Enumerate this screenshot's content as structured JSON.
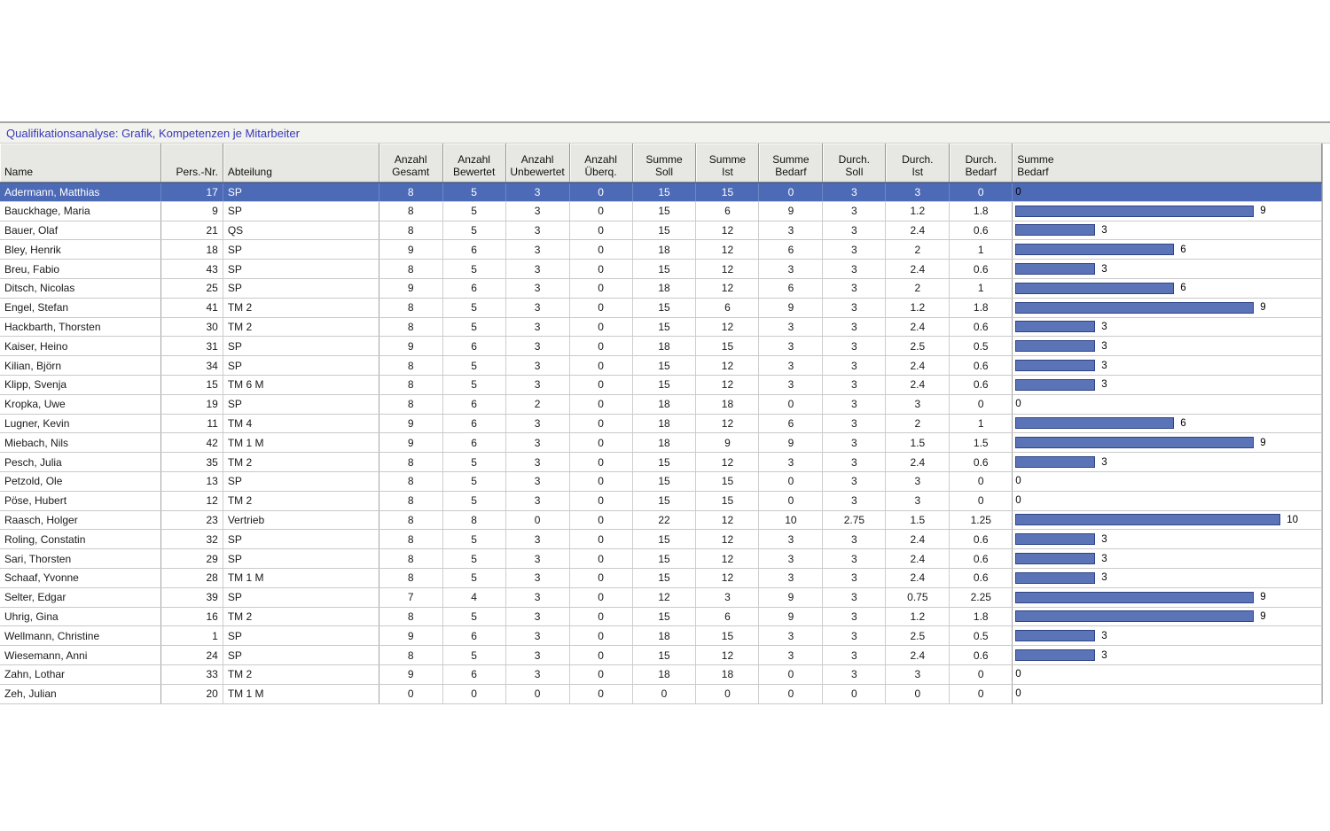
{
  "title": "Qualifikationsanalyse: Grafik, Kompetenzen je Mitarbeiter",
  "colors": {
    "title_text": "#3838b6",
    "selected_row": "#4c6ab6",
    "bar_fill": "#5b74b8",
    "bar_border": "#2f4385"
  },
  "table": {
    "columns": [
      {
        "key": "name",
        "label": "Name",
        "align": "left"
      },
      {
        "key": "pers_nr",
        "label": "Pers.-Nr.",
        "align": "right"
      },
      {
        "key": "abteilung",
        "label": "Abteilung",
        "align": "left"
      },
      {
        "key": "anzahl_gesamt",
        "label": "Anzahl\nGesamt",
        "align": "center"
      },
      {
        "key": "anzahl_bewertet",
        "label": "Anzahl\nBewertet",
        "align": "center"
      },
      {
        "key": "anzahl_unbewertet",
        "label": "Anzahl\nUnbewertet",
        "align": "center"
      },
      {
        "key": "anzahl_uberq",
        "label": "Anzahl\nÜberq.",
        "align": "center"
      },
      {
        "key": "summe_soll",
        "label": "Summe\nSoll",
        "align": "center"
      },
      {
        "key": "summe_ist",
        "label": "Summe\nIst",
        "align": "center"
      },
      {
        "key": "summe_bedarf",
        "label": "Summe\nBedarf",
        "align": "center"
      },
      {
        "key": "durch_soll",
        "label": "Durch.\nSoll",
        "align": "center"
      },
      {
        "key": "durch_ist",
        "label": "Durch.\nIst",
        "align": "center"
      },
      {
        "key": "durch_bedarf",
        "label": "Durch.\nBedarf",
        "align": "center"
      },
      {
        "key": "summe_bedarf_grafik",
        "label": "Summe\nBedarf",
        "align": "left"
      }
    ],
    "rows": [
      {
        "name": "Adermann, Matthias",
        "pers_nr": "17",
        "abteilung": "SP",
        "values": [
          "8",
          "5",
          "3",
          "0",
          "15",
          "15",
          "0",
          "3",
          "3",
          "0"
        ],
        "bar": "0",
        "selected": true
      },
      {
        "name": "Bauckhage, Maria",
        "pers_nr": "9",
        "abteilung": "SP",
        "values": [
          "8",
          "5",
          "3",
          "0",
          "15",
          "6",
          "9",
          "3",
          "1.2",
          "1.8"
        ],
        "bar": "9"
      },
      {
        "name": "Bauer, Olaf",
        "pers_nr": "21",
        "abteilung": "QS",
        "values": [
          "8",
          "5",
          "3",
          "0",
          "15",
          "12",
          "3",
          "3",
          "2.4",
          "0.6"
        ],
        "bar": "3"
      },
      {
        "name": "Bley, Henrik",
        "pers_nr": "18",
        "abteilung": "SP",
        "values": [
          "9",
          "6",
          "3",
          "0",
          "18",
          "12",
          "6",
          "3",
          "2",
          "1"
        ],
        "bar": "6"
      },
      {
        "name": "Breu, Fabio",
        "pers_nr": "43",
        "abteilung": "SP",
        "values": [
          "8",
          "5",
          "3",
          "0",
          "15",
          "12",
          "3",
          "3",
          "2.4",
          "0.6"
        ],
        "bar": "3"
      },
      {
        "name": "Ditsch, Nicolas",
        "pers_nr": "25",
        "abteilung": "SP",
        "values": [
          "9",
          "6",
          "3",
          "0",
          "18",
          "12",
          "6",
          "3",
          "2",
          "1"
        ],
        "bar": "6"
      },
      {
        "name": "Engel, Stefan",
        "pers_nr": "41",
        "abteilung": "TM 2",
        "values": [
          "8",
          "5",
          "3",
          "0",
          "15",
          "6",
          "9",
          "3",
          "1.2",
          "1.8"
        ],
        "bar": "9"
      },
      {
        "name": "Hackbarth, Thorsten",
        "pers_nr": "30",
        "abteilung": "TM 2",
        "values": [
          "8",
          "5",
          "3",
          "0",
          "15",
          "12",
          "3",
          "3",
          "2.4",
          "0.6"
        ],
        "bar": "3"
      },
      {
        "name": "Kaiser, Heino",
        "pers_nr": "31",
        "abteilung": "SP",
        "values": [
          "9",
          "6",
          "3",
          "0",
          "18",
          "15",
          "3",
          "3",
          "2.5",
          "0.5"
        ],
        "bar": "3"
      },
      {
        "name": "Kilian, Björn",
        "pers_nr": "34",
        "abteilung": "SP",
        "values": [
          "8",
          "5",
          "3",
          "0",
          "15",
          "12",
          "3",
          "3",
          "2.4",
          "0.6"
        ],
        "bar": "3"
      },
      {
        "name": "Klipp, Svenja",
        "pers_nr": "15",
        "abteilung": "TM 6 M",
        "values": [
          "8",
          "5",
          "3",
          "0",
          "15",
          "12",
          "3",
          "3",
          "2.4",
          "0.6"
        ],
        "bar": "3"
      },
      {
        "name": "Kropka, Uwe",
        "pers_nr": "19",
        "abteilung": "SP",
        "values": [
          "8",
          "6",
          "2",
          "0",
          "18",
          "18",
          "0",
          "3",
          "3",
          "0"
        ],
        "bar": "0"
      },
      {
        "name": "Lugner, Kevin",
        "pers_nr": "11",
        "abteilung": "TM 4",
        "values": [
          "9",
          "6",
          "3",
          "0",
          "18",
          "12",
          "6",
          "3",
          "2",
          "1"
        ],
        "bar": "6"
      },
      {
        "name": "Miebach, Nils",
        "pers_nr": "42",
        "abteilung": "TM 1 M",
        "values": [
          "9",
          "6",
          "3",
          "0",
          "18",
          "9",
          "9",
          "3",
          "1.5",
          "1.5"
        ],
        "bar": "9"
      },
      {
        "name": "Pesch, Julia",
        "pers_nr": "35",
        "abteilung": "TM 2",
        "values": [
          "8",
          "5",
          "3",
          "0",
          "15",
          "12",
          "3",
          "3",
          "2.4",
          "0.6"
        ],
        "bar": "3"
      },
      {
        "name": "Petzold, Ole",
        "pers_nr": "13",
        "abteilung": "SP",
        "values": [
          "8",
          "5",
          "3",
          "0",
          "15",
          "15",
          "0",
          "3",
          "3",
          "0"
        ],
        "bar": "0"
      },
      {
        "name": "Pöse, Hubert",
        "pers_nr": "12",
        "abteilung": "TM 2",
        "values": [
          "8",
          "5",
          "3",
          "0",
          "15",
          "15",
          "0",
          "3",
          "3",
          "0"
        ],
        "bar": "0"
      },
      {
        "name": "Raasch, Holger",
        "pers_nr": "23",
        "abteilung": "Vertrieb",
        "values": [
          "8",
          "8",
          "0",
          "0",
          "22",
          "12",
          "10",
          "2.75",
          "1.5",
          "1.25"
        ],
        "bar": "10"
      },
      {
        "name": "Roling, Constatin",
        "pers_nr": "32",
        "abteilung": "SP",
        "values": [
          "8",
          "5",
          "3",
          "0",
          "15",
          "12",
          "3",
          "3",
          "2.4",
          "0.6"
        ],
        "bar": "3"
      },
      {
        "name": "Sari, Thorsten",
        "pers_nr": "29",
        "abteilung": "SP",
        "values": [
          "8",
          "5",
          "3",
          "0",
          "15",
          "12",
          "3",
          "3",
          "2.4",
          "0.6"
        ],
        "bar": "3"
      },
      {
        "name": "Schaaf, Yvonne",
        "pers_nr": "28",
        "abteilung": "TM 1 M",
        "values": [
          "8",
          "5",
          "3",
          "0",
          "15",
          "12",
          "3",
          "3",
          "2.4",
          "0.6"
        ],
        "bar": "3"
      },
      {
        "name": "Selter, Edgar",
        "pers_nr": "39",
        "abteilung": "SP",
        "values": [
          "7",
          "4",
          "3",
          "0",
          "12",
          "3",
          "9",
          "3",
          "0.75",
          "2.25"
        ],
        "bar": "9"
      },
      {
        "name": "Uhrig, Gina",
        "pers_nr": "16",
        "abteilung": "TM 2",
        "values": [
          "8",
          "5",
          "3",
          "0",
          "15",
          "6",
          "9",
          "3",
          "1.2",
          "1.8"
        ],
        "bar": "9"
      },
      {
        "name": "Wellmann, Christine",
        "pers_nr": "1",
        "abteilung": "SP",
        "values": [
          "9",
          "6",
          "3",
          "0",
          "18",
          "15",
          "3",
          "3",
          "2.5",
          "0.5"
        ],
        "bar": "3"
      },
      {
        "name": "Wiesemann, Anni",
        "pers_nr": "24",
        "abteilung": "SP",
        "values": [
          "8",
          "5",
          "3",
          "0",
          "15",
          "12",
          "3",
          "3",
          "2.4",
          "0.6"
        ],
        "bar": "3"
      },
      {
        "name": "Zahn, Lothar",
        "pers_nr": "33",
        "abteilung": "TM 2",
        "values": [
          "9",
          "6",
          "3",
          "0",
          "18",
          "18",
          "0",
          "3",
          "3",
          "0"
        ],
        "bar": "0"
      },
      {
        "name": "Zeh, Julian",
        "pers_nr": "20",
        "abteilung": "TM 1 M",
        "values": [
          "0",
          "0",
          "0",
          "0",
          "0",
          "0",
          "0",
          "0",
          "0",
          "0"
        ],
        "bar": "0"
      }
    ]
  }
}
